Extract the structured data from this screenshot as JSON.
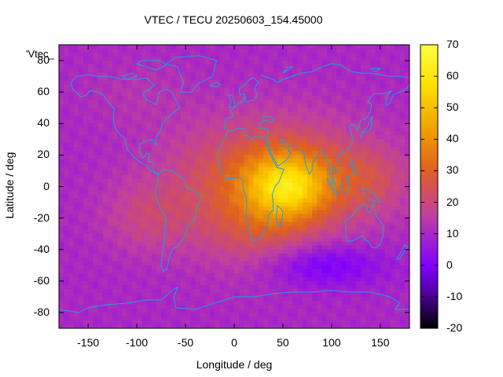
{
  "chart_data": {
    "type": "heatmap",
    "title": "VTEC / TECU 20250603_154.45000",
    "xlabel": "Longitude / deg",
    "ylabel": "Latitude / deg",
    "dataset_label": "'Vtec_",
    "xlim": [
      -180,
      180
    ],
    "ylim": [
      -90,
      90
    ],
    "x_ticks": [
      -150,
      -100,
      -50,
      0,
      50,
      100,
      150
    ],
    "y_ticks": [
      -80,
      -60,
      -40,
      -20,
      0,
      20,
      40,
      60,
      80
    ],
    "colorbar": {
      "min": -20,
      "max": 70,
      "ticks": [
        -20,
        -10,
        0,
        10,
        20,
        30,
        40,
        50,
        60,
        70
      ],
      "palette": [
        "#000000",
        "#5a00b0",
        "#8000ff",
        "#c040a0",
        "#e06020",
        "#f0a000",
        "#ffe000",
        "#ffff40"
      ]
    },
    "coastline_color": "#20a0e0",
    "field_peak": {
      "lon": 55,
      "lat": 0,
      "value": 62
    },
    "field_background": 10
  }
}
